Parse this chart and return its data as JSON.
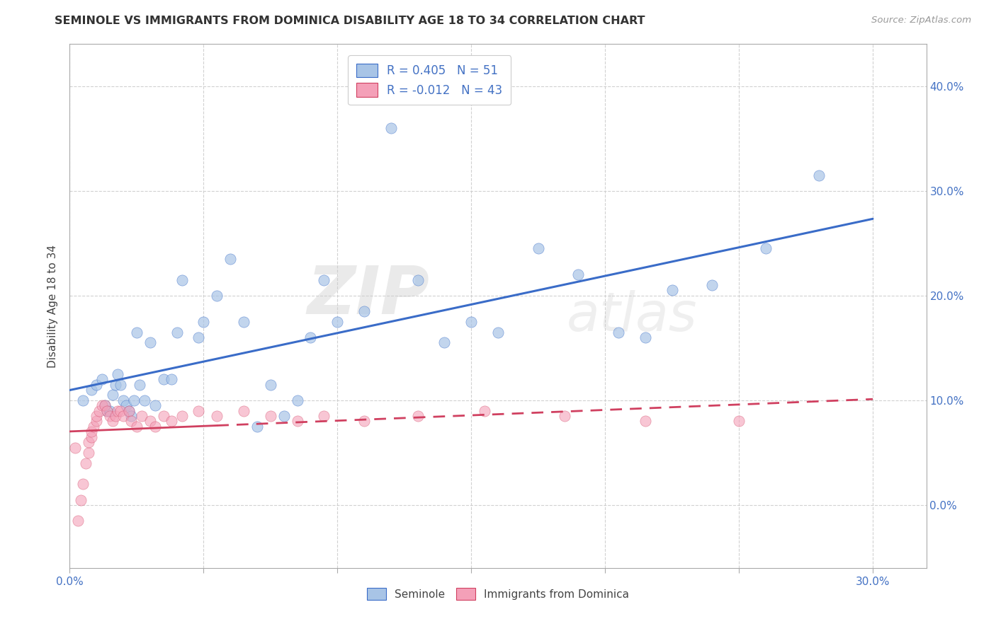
{
  "title": "SEMINOLE VS IMMIGRANTS FROM DOMINICA DISABILITY AGE 18 TO 34 CORRELATION CHART",
  "source": "Source: ZipAtlas.com",
  "xlim": [
    0.0,
    0.32
  ],
  "ylim": [
    -0.06,
    0.44
  ],
  "legend1_R": "0.405",
  "legend1_N": "51",
  "legend2_R": "-0.012",
  "legend2_N": "43",
  "seminole_color": "#a8c4e6",
  "dominica_color": "#f4a0b8",
  "trendline_seminole_color": "#3a6cc8",
  "trendline_dominica_color": "#d04060",
  "watermark_zip": "ZIP",
  "watermark_atlas": "atlas",
  "ylabel": "Disability Age 18 to 34",
  "seminole_x": [
    0.005,
    0.008,
    0.01,
    0.012,
    0.013,
    0.014,
    0.015,
    0.016,
    0.017,
    0.018,
    0.019,
    0.02,
    0.021,
    0.022,
    0.023,
    0.024,
    0.025,
    0.026,
    0.028,
    0.03,
    0.032,
    0.035,
    0.038,
    0.04,
    0.042,
    0.048,
    0.05,
    0.055,
    0.06,
    0.065,
    0.07,
    0.075,
    0.08,
    0.085,
    0.09,
    0.095,
    0.1,
    0.11,
    0.12,
    0.13,
    0.14,
    0.15,
    0.16,
    0.175,
    0.19,
    0.205,
    0.215,
    0.225,
    0.24,
    0.26,
    0.28
  ],
  "seminole_y": [
    0.1,
    0.11,
    0.115,
    0.12,
    0.095,
    0.09,
    0.09,
    0.105,
    0.115,
    0.125,
    0.115,
    0.1,
    0.095,
    0.09,
    0.085,
    0.1,
    0.165,
    0.115,
    0.1,
    0.155,
    0.095,
    0.12,
    0.12,
    0.165,
    0.215,
    0.16,
    0.175,
    0.2,
    0.235,
    0.175,
    0.075,
    0.115,
    0.085,
    0.1,
    0.16,
    0.215,
    0.175,
    0.185,
    0.36,
    0.215,
    0.155,
    0.175,
    0.165,
    0.245,
    0.22,
    0.165,
    0.16,
    0.205,
    0.21,
    0.245,
    0.315
  ],
  "dominica_x": [
    0.002,
    0.003,
    0.004,
    0.005,
    0.006,
    0.007,
    0.007,
    0.008,
    0.008,
    0.009,
    0.01,
    0.01,
    0.011,
    0.012,
    0.013,
    0.014,
    0.015,
    0.016,
    0.017,
    0.018,
    0.019,
    0.02,
    0.022,
    0.023,
    0.025,
    0.027,
    0.03,
    0.032,
    0.035,
    0.038,
    0.042,
    0.048,
    0.055,
    0.065,
    0.075,
    0.085,
    0.095,
    0.11,
    0.13,
    0.155,
    0.185,
    0.215,
    0.25
  ],
  "dominica_y": [
    0.055,
    -0.015,
    0.005,
    0.02,
    0.04,
    0.05,
    0.06,
    0.065,
    0.07,
    0.075,
    0.08,
    0.085,
    0.09,
    0.095,
    0.095,
    0.09,
    0.085,
    0.08,
    0.085,
    0.09,
    0.09,
    0.085,
    0.09,
    0.08,
    0.075,
    0.085,
    0.08,
    0.075,
    0.085,
    0.08,
    0.085,
    0.09,
    0.085,
    0.09,
    0.085,
    0.08,
    0.085,
    0.08,
    0.085,
    0.09,
    0.085,
    0.08,
    0.08
  ]
}
